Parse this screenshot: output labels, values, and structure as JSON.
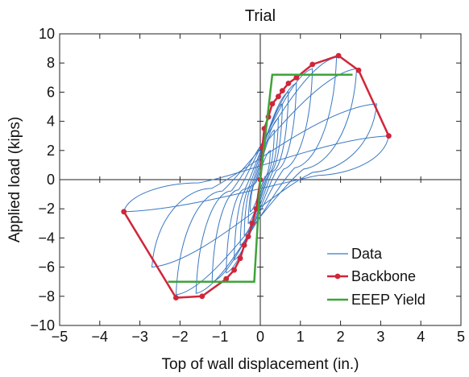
{
  "chart_data": {
    "type": "line",
    "title": "Trial",
    "xlabel": "Top of wall displacement (in.)",
    "ylabel": "Applied load (kips)",
    "xlim": [
      -5,
      5
    ],
    "ylim": [
      -10,
      10
    ],
    "xticks": [
      -5,
      -4,
      -3,
      -2,
      -1,
      0,
      1,
      2,
      3,
      4,
      5
    ],
    "yticks": [
      -10,
      -8,
      -6,
      -4,
      -2,
      0,
      2,
      4,
      6,
      8,
      10
    ],
    "xtick_labels": [
      "−5",
      "−4",
      "−3",
      "−2",
      "−1",
      "0",
      "1",
      "2",
      "3",
      "4",
      "5"
    ],
    "ytick_labels": [
      "−10",
      "−8",
      "−6",
      "−4",
      "−2",
      "0",
      "2",
      "4",
      "6",
      "8",
      "10"
    ],
    "grid": false,
    "legend_position": "bottom-right",
    "series": [
      {
        "name": "Data",
        "color": "#3a78c2",
        "marker": "none",
        "loops": [
          {
            "pos": [
              0.25,
              2.0
            ],
            "neg": [
              -0.25,
              -2.2
            ]
          },
          {
            "pos": [
              0.35,
              3.4
            ],
            "neg": [
              -0.3,
              -3.0
            ]
          },
          {
            "pos": [
              0.45,
              4.2
            ],
            "neg": [
              -0.4,
              -3.8
            ]
          },
          {
            "pos": [
              0.55,
              5.2
            ],
            "neg": [
              -0.5,
              -4.5
            ]
          },
          {
            "pos": [
              0.7,
              6.0
            ],
            "neg": [
              -0.65,
              -5.5
            ]
          },
          {
            "pos": [
              0.9,
              6.6
            ],
            "neg": [
              -0.85,
              -6.4
            ]
          },
          {
            "pos": [
              1.3,
              7.6
            ],
            "neg": [
              -1.2,
              -7.0
            ]
          },
          {
            "pos": [
              1.9,
              8.4
            ],
            "neg": [
              -1.6,
              -7.8
            ]
          },
          {
            "pos": [
              2.4,
              7.6
            ],
            "neg": [
              -2.1,
              -7.9
            ]
          },
          {
            "pos": [
              2.9,
              5.2
            ],
            "neg": [
              -2.7,
              -6.0
            ]
          },
          {
            "pos": [
              3.2,
              3.0
            ],
            "neg": [
              -3.4,
              -2.2
            ]
          }
        ]
      },
      {
        "name": "Backbone",
        "color": "#d0263a",
        "marker": "circle",
        "x": [
          -3.4,
          -2.1,
          -1.45,
          -0.85,
          -0.65,
          -0.5,
          -0.4,
          -0.3,
          -0.2,
          -0.1,
          0,
          0.05,
          0.1,
          0.2,
          0.3,
          0.45,
          0.55,
          0.7,
          0.9,
          1.3,
          1.95,
          2.45,
          3.2
        ],
        "y": [
          -2.2,
          -8.1,
          -8.0,
          -6.8,
          -6.2,
          -5.4,
          -4.5,
          -3.9,
          -3.0,
          -2.0,
          0,
          2.2,
          3.5,
          4.3,
          5.2,
          5.7,
          6.1,
          6.6,
          7.0,
          7.9,
          8.5,
          7.5,
          3.0
        ]
      },
      {
        "name": "EEEP Yield",
        "color": "#3fa33a",
        "marker": "none",
        "x": [
          -2.3,
          -0.15,
          0,
          0.3,
          2.3
        ],
        "y": [
          -7.0,
          -7.0,
          0,
          7.2,
          7.2
        ]
      }
    ]
  }
}
